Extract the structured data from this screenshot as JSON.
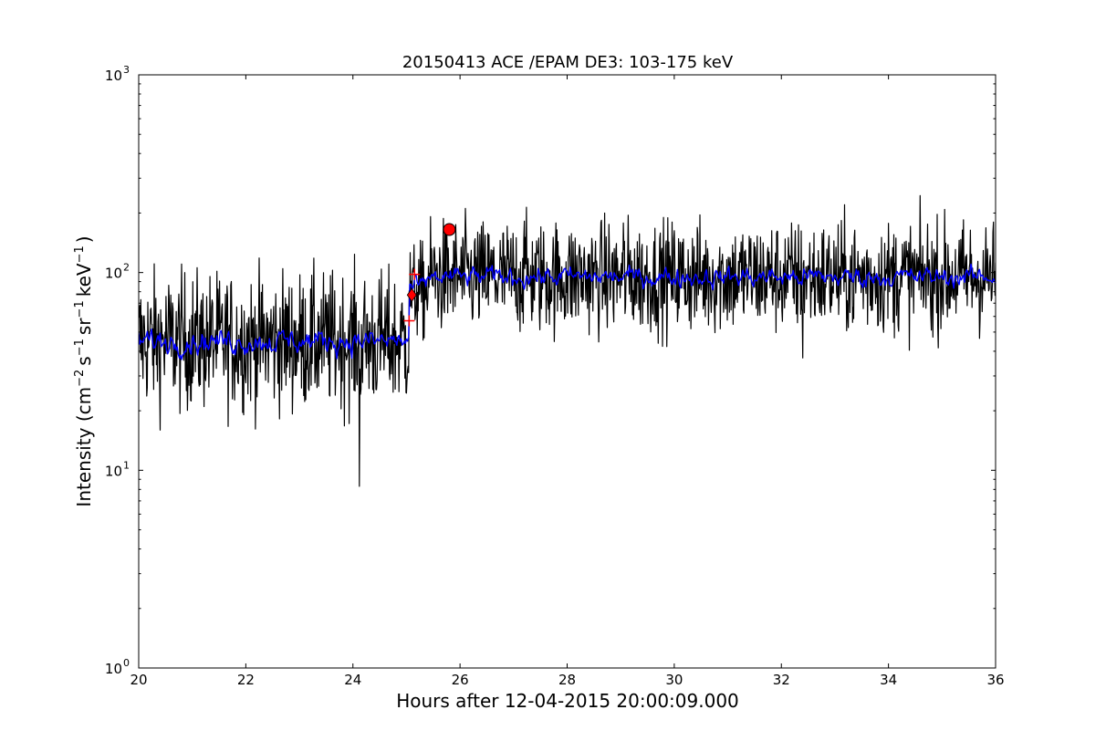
{
  "chart_data": {
    "type": "line",
    "title": "20150413 ACE /EPAM DE3: 103-175 keV",
    "xlabel": "Hours after 12-04-2015 20:00:09.000",
    "ylabel": {
      "prefix": "Intensity (cm",
      "cm_exp": "−2",
      "s": "s",
      "s_exp": "−1",
      "sr": "sr",
      "sr_exp": "−1",
      "kev": "keV",
      "kev_exp": "−1",
      "suffix": ")"
    },
    "xlim": [
      20,
      36
    ],
    "ylim": [
      1,
      1000
    ],
    "yscale": "log",
    "xticks": [
      "20",
      "22",
      "24",
      "26",
      "28",
      "30",
      "32",
      "34",
      "36"
    ],
    "yticks": [
      {
        "base": "10",
        "exp": "0"
      },
      {
        "base": "10",
        "exp": "1"
      },
      {
        "base": "10",
        "exp": "2"
      },
      {
        "base": "10",
        "exp": "3"
      }
    ],
    "series": [
      {
        "color": "#000000",
        "baseline_segments": [
          {
            "x": [
              20.0,
              25.05
            ],
            "y_median": 45,
            "log_spread": 0.17
          },
          {
            "x": [
              25.05,
              25.4
            ],
            "y_median": 80,
            "log_spread": 0.12
          },
          {
            "x": [
              25.4,
              36.0
            ],
            "y_median": 95,
            "log_spread": 0.14
          }
        ],
        "notable_points": [
          {
            "x": 24.12,
            "y": 8.3
          },
          {
            "x": 27.2,
            "y": 182
          },
          {
            "x": 29.05,
            "y": 178
          },
          {
            "x": 32.4,
            "y": 37
          }
        ]
      },
      {
        "color": "#0000ff",
        "smoothed": true,
        "baseline_segments": [
          {
            "x": [
              20.0,
              25.05
            ],
            "y_median": 45,
            "log_spread": 0.06
          },
          {
            "x": [
              25.05,
              25.4
            ],
            "y_median": 85,
            "log_spread": 0.05
          },
          {
            "x": [
              25.4,
              36.0
            ],
            "y_median": 95,
            "log_spread": 0.05
          }
        ]
      }
    ],
    "markers": [
      {
        "shape": "circle",
        "x": 25.8,
        "y": 165,
        "color": "#ff0000"
      },
      {
        "shape": "diamond",
        "x": 25.1,
        "y": 77,
        "color": "#ff0000"
      },
      {
        "shape": "plus",
        "x": 25.15,
        "y": 98,
        "color": "#ff0000"
      },
      {
        "shape": "plus",
        "x": 25.05,
        "y": 57,
        "color": "#ff0000"
      }
    ]
  }
}
